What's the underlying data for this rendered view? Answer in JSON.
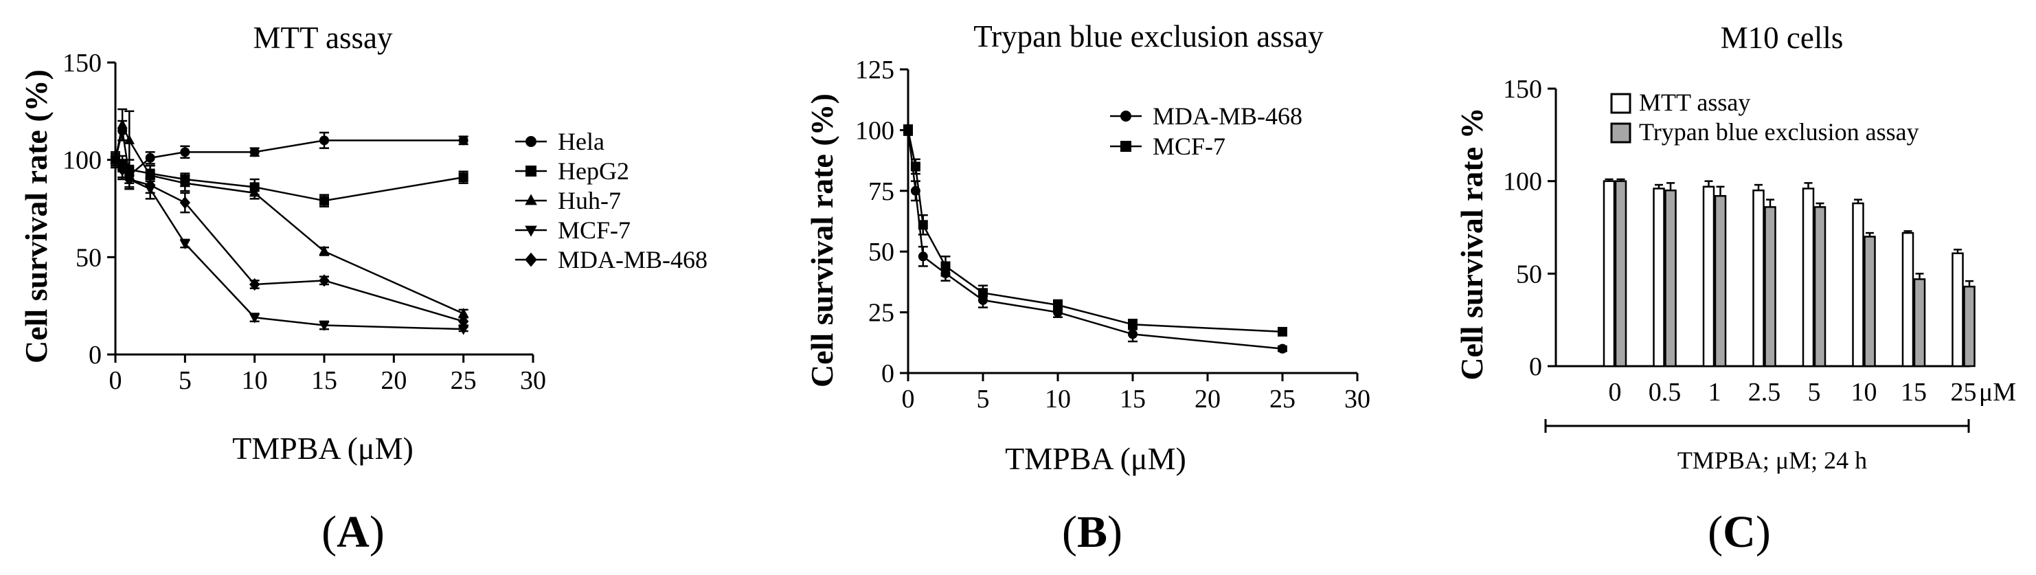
{
  "chart_data": [
    {
      "type": "line",
      "title": "MTT assay",
      "xlabel": "TMPBA (μM)",
      "ylabel": "Cell survival rate (%)",
      "xlim": [
        0,
        30
      ],
      "ylim": [
        0,
        150
      ],
      "xticks": [
        "0",
        "5",
        "10",
        "15",
        "20",
        "25",
        "30"
      ],
      "yticks": [
        "0",
        "50",
        "100",
        "150"
      ],
      "x": [
        0,
        0.5,
        1,
        2.5,
        5,
        10,
        15,
        25
      ],
      "series": [
        {
          "name": "Hela",
          "marker": "circle",
          "values": [
            100,
            115,
            92,
            101,
            104,
            104,
            110,
            110
          ],
          "errors": [
            3,
            5,
            4,
            3,
            3,
            2,
            4,
            2
          ]
        },
        {
          "name": "HepG2",
          "marker": "square",
          "values": [
            100,
            98,
            95,
            93,
            90,
            86,
            79,
            91
          ],
          "errors": [
            3,
            4,
            5,
            4,
            3,
            4,
            3,
            3
          ]
        },
        {
          "name": "Huh-7",
          "marker": "triangle-up",
          "values": [
            100,
            118,
            110,
            92,
            88,
            83,
            53,
            21
          ],
          "errors": [
            4,
            8,
            15,
            5,
            4,
            3,
            2,
            2
          ]
        },
        {
          "name": "MCF-7",
          "marker": "triangle-down",
          "values": [
            100,
            95,
            90,
            85,
            57,
            19,
            15,
            13
          ],
          "errors": [
            3,
            4,
            4,
            5,
            2,
            2,
            2,
            1
          ]
        },
        {
          "name": "MDA-MB-468",
          "marker": "diamond",
          "values": [
            100,
            95,
            90,
            87,
            78,
            36,
            38,
            17
          ],
          "errors": [
            3,
            5,
            5,
            4,
            5,
            2,
            2,
            2
          ]
        }
      ],
      "legend": "right"
    },
    {
      "type": "line",
      "title": "Trypan blue exclusion assay",
      "xlabel": "TMPBA (μM)",
      "ylabel": "Cell survival rate (%)",
      "xlim": [
        0,
        30
      ],
      "ylim": [
        0,
        125
      ],
      "xticks": [
        "0",
        "5",
        "10",
        "15",
        "20",
        "25",
        "30"
      ],
      "yticks": [
        "0",
        "25",
        "50",
        "75",
        "100",
        "125"
      ],
      "x": [
        0,
        0.5,
        1,
        2.5,
        5,
        10,
        15,
        25
      ],
      "series": [
        {
          "name": "MDA-MB-468",
          "marker": "circle",
          "values": [
            100,
            75,
            48,
            41,
            30,
            25,
            16,
            10
          ],
          "errors": [
            2,
            4,
            4,
            3,
            3,
            2,
            3,
            1
          ]
        },
        {
          "name": "MCF-7",
          "marker": "square",
          "values": [
            100,
            85,
            61,
            44,
            33,
            28,
            20,
            17
          ],
          "errors": [
            2,
            3,
            4,
            4,
            3,
            2,
            2,
            1
          ]
        }
      ],
      "legend": "top-right"
    },
    {
      "type": "bar",
      "title": "M10 cells",
      "ylabel": "Cell survival rate %",
      "ylim": [
        0,
        150
      ],
      "yticks": [
        "0",
        "50",
        "100",
        "150"
      ],
      "categories": [
        "0",
        "0.5",
        "1",
        "2.5",
        "5",
        "10",
        "15",
        "25"
      ],
      "unit_label": "μM",
      "caption": "TMPBA; μM; 24 h",
      "series": [
        {
          "name": "MTT assay",
          "color": "#ffffff",
          "values": [
            100,
            96,
            97,
            95,
            96,
            88,
            72,
            61
          ],
          "errors": [
            1,
            2,
            3,
            3,
            3,
            2,
            1,
            2
          ]
        },
        {
          "name": "Trypan blue exclusion assay",
          "color": "#a6a6a6",
          "values": [
            100,
            95,
            92,
            86,
            86,
            70,
            47,
            43
          ],
          "errors": [
            1,
            4,
            5,
            4,
            2,
            2,
            3,
            3
          ]
        }
      ],
      "legend": "top"
    }
  ],
  "panel_labels": [
    "A",
    "B",
    "C"
  ]
}
